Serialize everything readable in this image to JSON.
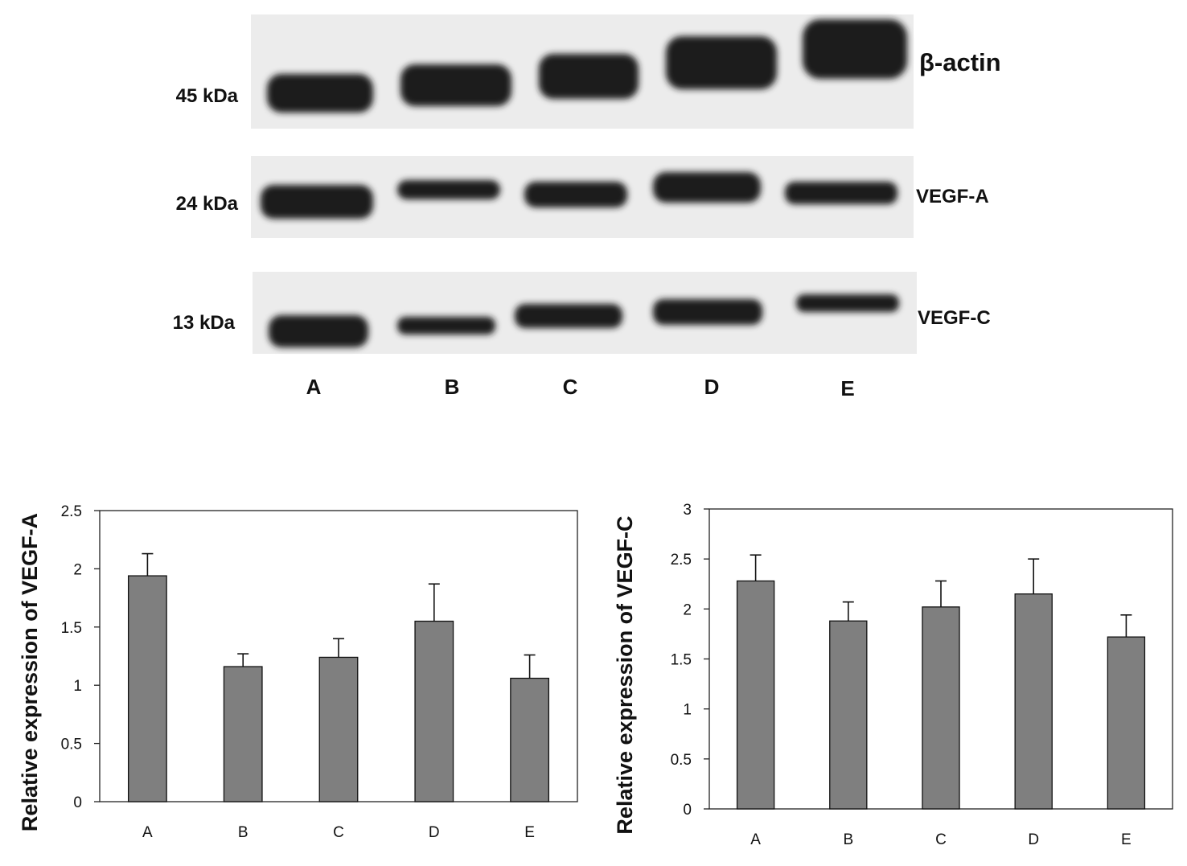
{
  "blot": {
    "kda_labels": [
      "45 kDa",
      "24 kDa",
      "13 kDa"
    ],
    "protein_labels": [
      "β-actin",
      "VEGF-A",
      "VEGF-C"
    ],
    "lanes": [
      "A",
      "B",
      "C",
      "D",
      "E"
    ]
  },
  "chart_data": [
    {
      "type": "bar",
      "categories": [
        "A",
        "B",
        "C",
        "D",
        "E"
      ],
      "values": [
        1.94,
        1.16,
        1.24,
        1.55,
        1.06
      ],
      "errors": [
        0.19,
        0.11,
        0.16,
        0.32,
        0.2
      ],
      "ylabel": "Relative expression of VEGF-A",
      "ylim": [
        0,
        2.5
      ],
      "yticks": [
        "0",
        "0.5",
        "1",
        "1.5",
        "2",
        "2.5"
      ],
      "grid": false,
      "bar_color": "#7f7f7f"
    },
    {
      "type": "bar",
      "categories": [
        "A",
        "B",
        "C",
        "D",
        "E"
      ],
      "values": [
        2.28,
        1.88,
        2.02,
        2.15,
        1.72
      ],
      "errors": [
        0.26,
        0.19,
        0.26,
        0.35,
        0.22
      ],
      "ylabel": "Relative expression of VEGF-C",
      "ylim": [
        0,
        3
      ],
      "yticks": [
        "0",
        "0.5",
        "1",
        "1.5",
        "2",
        "2.5",
        "3"
      ],
      "grid": false,
      "bar_color": "#7f7f7f"
    }
  ]
}
